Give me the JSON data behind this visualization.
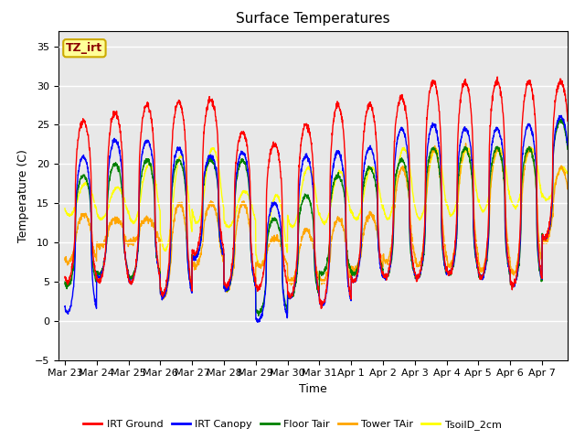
{
  "title": "Surface Temperatures",
  "xlabel": "Time",
  "ylabel": "Temperature (C)",
  "ylim": [
    -5,
    37
  ],
  "background_color": "#e8e8e8",
  "grid_color": "white",
  "annotation_text": "TZ_irt",
  "annotation_color": "#8b0000",
  "annotation_bg": "#ffff99",
  "annotation_border": "#ccaa00",
  "legend_labels": [
    "IRT Ground",
    "IRT Canopy",
    "Floor Tair",
    "Tower TAir",
    "TsoilD_2cm"
  ],
  "line_colors": [
    "red",
    "blue",
    "green",
    "orange",
    "yellow"
  ],
  "line_widths": [
    1.0,
    1.0,
    1.0,
    1.0,
    1.0
  ],
  "tick_labels": [
    "Mar 23",
    "Mar 24",
    "Mar 25",
    "Mar 26",
    "Mar 27",
    "Mar 28",
    "Mar 29",
    "Mar 30",
    "Mar 31",
    "Apr 1",
    "Apr 2",
    "Apr 3",
    "Apr 4",
    "Apr 5",
    "Apr 6",
    "Apr 7"
  ],
  "num_days": 16,
  "pts_per_day": 144,
  "daily_max_irt": [
    25.5,
    26.5,
    27.5,
    28.0,
    28.2,
    24.0,
    22.5,
    25.0,
    27.5,
    27.5,
    28.5,
    30.5,
    30.5,
    30.5,
    30.5,
    30.5
  ],
  "daily_min_irt": [
    5.0,
    5.0,
    4.8,
    3.5,
    8.5,
    4.5,
    4.0,
    3.0,
    2.0,
    5.0,
    5.5,
    5.5,
    6.0,
    5.5,
    4.5,
    10.5
  ],
  "daily_max_canopy": [
    21.0,
    23.0,
    23.0,
    22.0,
    21.0,
    21.5,
    15.0,
    21.0,
    21.5,
    22.0,
    24.5,
    25.0,
    24.5,
    24.5,
    25.0,
    26.0
  ],
  "daily_min_canopy": [
    1.0,
    5.5,
    5.0,
    3.0,
    8.0,
    4.0,
    0.0,
    3.0,
    2.0,
    5.0,
    5.5,
    5.5,
    6.0,
    5.5,
    4.5,
    10.5
  ],
  "daily_max_floor": [
    18.5,
    20.0,
    20.5,
    20.5,
    20.5,
    20.5,
    13.0,
    16.0,
    18.5,
    19.5,
    20.5,
    22.0,
    22.0,
    22.0,
    22.0,
    25.5
  ],
  "daily_min_floor": [
    4.5,
    6.0,
    5.5,
    3.5,
    8.0,
    4.0,
    1.0,
    3.0,
    6.0,
    6.0,
    5.5,
    5.5,
    6.0,
    5.5,
    4.5,
    10.5
  ],
  "daily_max_tower": [
    13.5,
    13.0,
    13.0,
    15.0,
    15.0,
    15.0,
    10.5,
    11.5,
    13.0,
    13.5,
    19.5,
    22.0,
    22.0,
    22.0,
    22.0,
    19.5
  ],
  "daily_min_tower": [
    7.5,
    9.5,
    10.0,
    3.0,
    7.0,
    4.0,
    7.0,
    5.0,
    5.0,
    6.5,
    7.5,
    7.0,
    7.0,
    6.5,
    6.0,
    10.0
  ],
  "daily_max_soil": [
    17.5,
    17.0,
    20.0,
    21.0,
    22.0,
    16.5,
    16.0,
    19.5,
    19.0,
    19.5,
    22.0,
    22.0,
    22.0,
    22.0,
    22.0,
    19.5
  ],
  "daily_min_soil": [
    13.5,
    13.0,
    12.5,
    9.0,
    12.5,
    12.0,
    7.0,
    12.0,
    12.5,
    13.0,
    13.0,
    13.0,
    13.5,
    14.0,
    14.5,
    15.5
  ]
}
